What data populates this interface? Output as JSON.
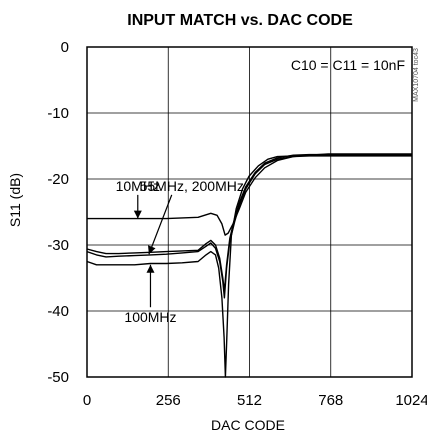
{
  "chart_data": {
    "type": "line",
    "title": "INPUT MATCH vs. DAC CODE",
    "xlabel": "DAC CODE",
    "ylabel": "S11 (dB)",
    "xlim": [
      0,
      1024
    ],
    "ylim": [
      -50,
      0
    ],
    "xticks": [
      0,
      256,
      512,
      768,
      1024
    ],
    "xtick_labels": [
      "0",
      "256",
      "512",
      "768",
      "1024"
    ],
    "yticks": [
      0,
      -10,
      -20,
      -30,
      -40,
      -50
    ],
    "ytick_labels": [
      "0",
      "-10",
      "-20",
      "-30",
      "-40",
      "-50"
    ],
    "grid": true,
    "legend": "none",
    "condition_label": "C10 = C11 = 10nF",
    "watermark": "MAX10704 toc43",
    "series": [
      {
        "name": "10MHz",
        "x": [
          0,
          50,
          100,
          150,
          200,
          250,
          300,
          350,
          390,
          410,
          425,
          435,
          445,
          460,
          480,
          500,
          530,
          560,
          600,
          650,
          700,
          760,
          800,
          850,
          900,
          950,
          1024
        ],
        "y": [
          -26,
          -26,
          -26,
          -26,
          -26,
          -26,
          -25.9,
          -25.8,
          -25.2,
          -25.5,
          -26.8,
          -28.5,
          -28.2,
          -26.8,
          -24.5,
          -22,
          -19.8,
          -18.3,
          -17.2,
          -16.6,
          -16.4,
          -16.2,
          -16.2,
          -16.2,
          -16.2,
          -16.2,
          -16.2
        ]
      },
      {
        "name": "55MHz",
        "x": [
          0,
          30,
          60,
          100,
          150,
          200,
          250,
          300,
          350,
          375,
          390,
          405,
          418,
          428,
          433,
          440,
          450,
          465,
          480,
          500,
          530,
          560,
          600,
          650,
          700,
          760,
          800,
          850,
          900,
          950,
          1024
        ],
        "y": [
          -31,
          -31.5,
          -31.8,
          -31.7,
          -31.6,
          -31.5,
          -31.4,
          -31.2,
          -31,
          -30.2,
          -29.7,
          -30.5,
          -32.5,
          -35.5,
          -38,
          -33.5,
          -29.5,
          -26.5,
          -24,
          -21.5,
          -19.2,
          -17.8,
          -17,
          -16.6,
          -16.5,
          -16.5,
          -16.5,
          -16.5,
          -16.5,
          -16.5,
          -16.5
        ]
      },
      {
        "name": "200MHz",
        "x": [
          0,
          30,
          60,
          100,
          150,
          200,
          250,
          300,
          350,
          375,
          390,
          405,
          418,
          428,
          433,
          440,
          450,
          465,
          480,
          500,
          530,
          560,
          600,
          650,
          700,
          760,
          800,
          850,
          900,
          950,
          1024
        ],
        "y": [
          -30.6,
          -31,
          -31.3,
          -31.3,
          -31.2,
          -31.1,
          -31,
          -30.9,
          -30.8,
          -29.8,
          -29.3,
          -30,
          -32,
          -35,
          -37,
          -33,
          -29,
          -26,
          -23.6,
          -21.2,
          -19,
          -17.6,
          -16.8,
          -16.4,
          -16.3,
          -16.3,
          -16.3,
          -16.3,
          -16.3,
          -16.3,
          -16.3
        ]
      },
      {
        "name": "100MHz",
        "x": [
          0,
          30,
          60,
          100,
          150,
          200,
          250,
          300,
          350,
          375,
          390,
          405,
          415,
          425,
          432,
          436,
          440,
          446,
          455,
          470,
          490,
          510,
          540,
          570,
          600,
          650,
          700,
          760,
          800,
          850,
          900,
          950,
          1024
        ],
        "y": [
          -32.5,
          -33,
          -33,
          -33,
          -33,
          -32.8,
          -32.8,
          -32.7,
          -32.5,
          -31.5,
          -31,
          -31.5,
          -33.5,
          -38,
          -44,
          -50,
          -45,
          -36,
          -28.5,
          -24.5,
          -21.5,
          -19.6,
          -18,
          -17,
          -16.6,
          -16.5,
          -16.4,
          -16.4,
          -16.4,
          -16.4,
          -16.4,
          -16.4,
          -16.4
        ]
      }
    ],
    "annotations": [
      {
        "text": "10MHz",
        "x": 160,
        "y": -21.8,
        "target_x": 160,
        "target_y": -26
      },
      {
        "text": "55MHz, 200MHz",
        "x": 330,
        "y": -21.8,
        "target_x": 195,
        "target_y": -31.4
      },
      {
        "text": "100MHz",
        "x": 200,
        "y": -41.7,
        "target_x": 200,
        "target_y": -33
      }
    ]
  }
}
